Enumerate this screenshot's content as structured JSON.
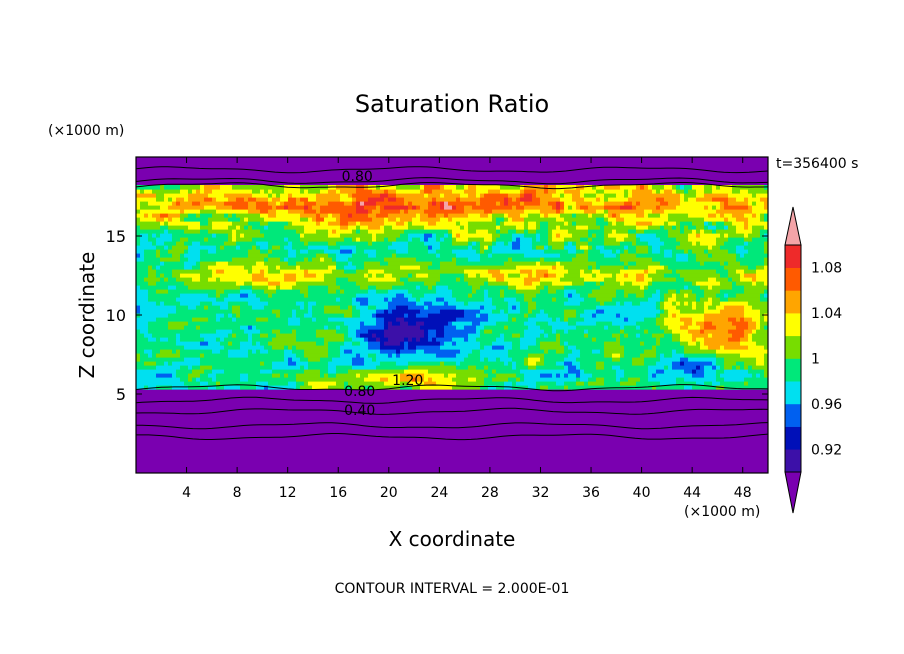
{
  "chart_data": {
    "type": "heatmap",
    "title": "Saturation Ratio",
    "xlabel": "X coordinate",
    "ylabel": "Z coordinate",
    "x_unit": "(×1000 m)",
    "y_unit": "(×1000 m)",
    "time_label": "t=356400 s",
    "footer": "CONTOUR INTERVAL = 2.000E-01",
    "xlim": [
      0,
      50
    ],
    "ylim": [
      0,
      20
    ],
    "x_ticks": [
      4,
      8,
      12,
      16,
      20,
      24,
      28,
      32,
      36,
      40,
      44,
      48
    ],
    "y_ticks": [
      5,
      10,
      15
    ],
    "colorbar": {
      "levels": [
        0.92,
        0.94,
        0.96,
        0.98,
        1.0,
        1.02,
        1.04,
        1.06,
        1.08,
        1.1
      ],
      "labels": [
        "0.92",
        "0.96",
        "1",
        "1.04",
        "1.08"
      ],
      "label_values": [
        0.92,
        0.96,
        1.0,
        1.04,
        1.08
      ],
      "colors": [
        "#7a00b0",
        "#3c10a8",
        "#0010b8",
        "#0060f0",
        "#00e0f0",
        "#00e87a",
        "#77dd00",
        "#ffff00",
        "#ffa500",
        "#ff5a00",
        "#ee2a2a",
        "#f4a4a8"
      ]
    },
    "contour_labels": [
      {
        "text": "0.80",
        "x": 17.5,
        "z": 18.8
      },
      {
        "text": "1.20",
        "x": 21.5,
        "z": 5.9
      },
      {
        "text": "0.80",
        "x": 17.7,
        "z": 5.2
      },
      {
        "text": "0.40",
        "x": 17.7,
        "z": 4.0
      }
    ]
  }
}
